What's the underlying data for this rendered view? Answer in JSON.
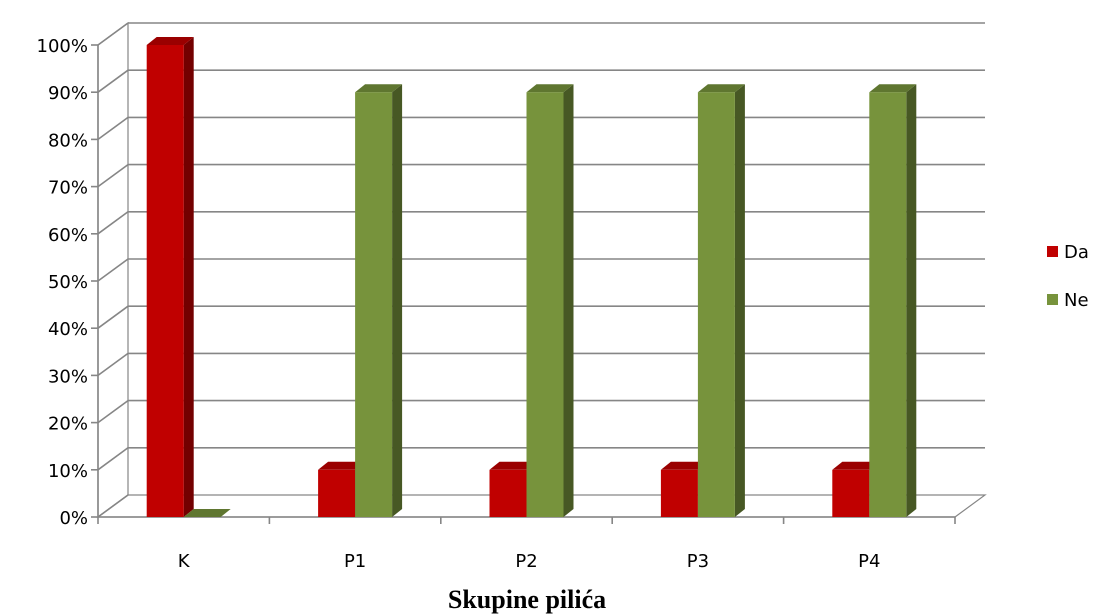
{
  "chart_data": {
    "type": "bar",
    "title": "",
    "xlabel": "Skupine pilića",
    "ylabel": "",
    "categories": [
      "K",
      "P1",
      "P2",
      "P3",
      "P4"
    ],
    "y_ticks": [
      "0%",
      "10%",
      "20%",
      "30%",
      "40%",
      "50%",
      "60%",
      "70%",
      "80%",
      "90%",
      "100%"
    ],
    "ylim": [
      0,
      100
    ],
    "y_unit": "%",
    "grid": true,
    "three_d": true,
    "legend_position": "right",
    "series": [
      {
        "name": "Da",
        "color": "#c00000",
        "values": [
          100,
          10,
          10,
          10,
          10
        ]
      },
      {
        "name": "Ne",
        "color": "#77933c",
        "values": [
          0,
          90,
          90,
          90,
          90
        ]
      }
    ]
  }
}
